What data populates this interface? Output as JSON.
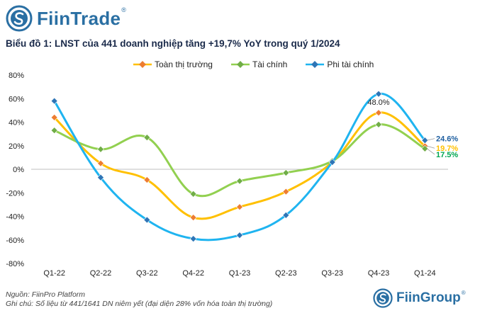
{
  "header": {
    "brand": "FiinTrade",
    "brand_mark": "®"
  },
  "chart_data": {
    "type": "line",
    "title": "Biểu đồ 1: LNST của 441 doanh nghiệp tăng +19,7% YoY trong quý 1/2024",
    "categories": [
      "Q1-22",
      "Q2-22",
      "Q3-22",
      "Q4-22",
      "Q1-23",
      "Q2-23",
      "Q3-23",
      "Q4-23",
      "Q1-24"
    ],
    "y_ticks": [
      "80%",
      "60%",
      "40%",
      "20%",
      "0%",
      "-20%",
      "-40%",
      "-60%",
      "-80%"
    ],
    "ylim": [
      -80,
      80
    ],
    "grid": false,
    "legend_position": "top",
    "series": [
      {
        "name": "Toàn thị trường",
        "color": "#ffc000",
        "marker_color": "#ed7d31",
        "values": [
          44,
          5,
          -9,
          -41,
          -32,
          -19,
          6,
          48.0,
          19.7
        ]
      },
      {
        "name": "Tài chính",
        "color": "#92d050",
        "marker_color": "#70ad47",
        "values": [
          33,
          17,
          27,
          -21,
          -10,
          -3,
          7,
          38,
          17.5
        ]
      },
      {
        "name": "Phi tài chính",
        "color": "#1fb4f0",
        "marker_color": "#2e75b6",
        "values": [
          58,
          -7,
          -43,
          -59,
          -56,
          -39,
          6,
          64,
          24.6
        ]
      }
    ],
    "annotations": [
      {
        "text": "48.0%",
        "series": 0,
        "index": 7,
        "color": "#222222"
      },
      {
        "text": "24.6%",
        "series": 2,
        "index": 8,
        "color": "#1f5fa0"
      },
      {
        "text": "19.7%",
        "series": 0,
        "index": 8,
        "color": "#ffc000"
      },
      {
        "text": "17.5%",
        "series": 1,
        "index": 8,
        "color": "#00a651"
      }
    ]
  },
  "footer": {
    "source": "Nguồn: FiinPro Platform",
    "note": "Ghi chú: Số liệu từ 441/1641 DN niêm yết (đại diện 28% vốn hóa toàn thị trường)",
    "brand": "FiinGroup",
    "brand_mark": "®"
  }
}
